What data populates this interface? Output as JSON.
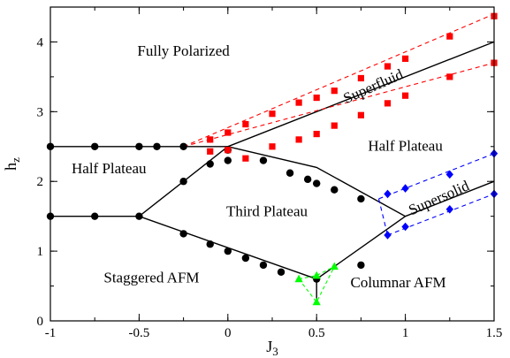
{
  "chart_data": {
    "type": "scatter",
    "xlabel": "J",
    "xlabel_sub": "3",
    "ylabel": "h",
    "ylabel_sub": "z",
    "xlim": [
      -1,
      1.5
    ],
    "ylim": [
      0,
      4.5
    ],
    "xticks": [
      -1,
      -0.5,
      0,
      0.5,
      1,
      1.5
    ],
    "xtick_labels": [
      "-1",
      "-0.5",
      "0",
      "0.5",
      "1",
      "1.5"
    ],
    "yticks": [
      0,
      1,
      2,
      3,
      4
    ],
    "ytick_labels": [
      "0",
      "1",
      "2",
      "3",
      "4"
    ],
    "grid": false,
    "colors": {
      "black": "#000000",
      "red": "#ff0000",
      "blue": "#0000ff",
      "green": "#00ff00"
    },
    "regions": [
      {
        "text": "Fully Polarized",
        "x": -0.25,
        "y": 3.8,
        "color": "#000000",
        "rotate": 0
      },
      {
        "text": "Half Plateau",
        "x": -0.67,
        "y": 2.12,
        "color": "#000000",
        "rotate": 0
      },
      {
        "text": "Half Plateau",
        "x": 1.0,
        "y": 2.44,
        "color": "#000000",
        "rotate": 0
      },
      {
        "text": "Third Plateau",
        "x": 0.22,
        "y": 1.5,
        "color": "#000000",
        "rotate": 0
      },
      {
        "text": "Staggered AFM",
        "x": -0.43,
        "y": 0.55,
        "color": "#000000",
        "rotate": 0
      },
      {
        "text": "Columnar AFM",
        "x": 0.96,
        "y": 0.48,
        "color": "#000000",
        "rotate": 0
      },
      {
        "text": "Superfluid",
        "x": 0.83,
        "y": 3.3,
        "color": "#ff0000",
        "rotate": -24
      },
      {
        "text": "Supersolid",
        "x": 1.2,
        "y": 1.7,
        "color": "#0000ff",
        "rotate": -24
      }
    ],
    "series": [
      {
        "color": "#000000",
        "marker": "circle",
        "line": "none",
        "points": [
          [
            -1,
            2.5
          ],
          [
            -0.75,
            2.5
          ],
          [
            -0.5,
            2.5
          ],
          [
            -0.4,
            2.5
          ],
          [
            -0.25,
            2.5
          ],
          [
            -1,
            1.5
          ],
          [
            -0.75,
            1.5
          ],
          [
            -0.5,
            1.5
          ],
          [
            -0.25,
            2.0
          ],
          [
            -0.1,
            2.25
          ],
          [
            0,
            2.3
          ],
          [
            0,
            2.45
          ],
          [
            0.2,
            2.3
          ],
          [
            0.35,
            2.12
          ],
          [
            0.45,
            2.03
          ],
          [
            0.5,
            1.97
          ],
          [
            0.6,
            1.88
          ],
          [
            0.75,
            1.75
          ],
          [
            -0.25,
            1.25
          ],
          [
            -0.1,
            1.1
          ],
          [
            0,
            1.0
          ],
          [
            0.1,
            0.9
          ],
          [
            0.2,
            0.8
          ],
          [
            0.3,
            0.7
          ],
          [
            0.5,
            0.6
          ],
          [
            0.75,
            0.8
          ]
        ]
      },
      {
        "color": "#ff0000",
        "marker": "square",
        "line": "none",
        "points": [
          [
            -0.1,
            2.6
          ],
          [
            0,
            2.7
          ],
          [
            0.1,
            2.82
          ],
          [
            0.25,
            2.97
          ],
          [
            0.4,
            3.13
          ],
          [
            0.5,
            3.2
          ],
          [
            0.6,
            3.3
          ],
          [
            0.75,
            3.48
          ],
          [
            0.9,
            3.65
          ],
          [
            1.0,
            3.76
          ],
          [
            1.25,
            4.08
          ],
          [
            1.5,
            4.37
          ],
          [
            -0.1,
            2.43
          ],
          [
            0,
            2.45
          ],
          [
            0.1,
            2.33
          ],
          [
            0.25,
            2.5
          ],
          [
            0.4,
            2.6
          ],
          [
            0.5,
            2.68
          ],
          [
            0.6,
            2.8
          ],
          [
            0.75,
            2.95
          ],
          [
            0.9,
            3.12
          ],
          [
            1.0,
            3.23
          ],
          [
            1.25,
            3.5
          ],
          [
            1.5,
            3.7
          ]
        ]
      },
      {
        "color": "#0000ff",
        "marker": "diamond",
        "line": "none",
        "points": [
          [
            0.9,
            1.82
          ],
          [
            1.0,
            1.9
          ],
          [
            1.25,
            2.1
          ],
          [
            1.5,
            2.4
          ],
          [
            0.9,
            1.23
          ],
          [
            1.0,
            1.35
          ],
          [
            1.25,
            1.6
          ],
          [
            1.5,
            1.82
          ]
        ]
      },
      {
        "color": "#00ff00",
        "marker": "triangle",
        "line": "none",
        "points": [
          [
            0.4,
            0.6
          ],
          [
            0.5,
            0.65
          ],
          [
            0.6,
            0.78
          ],
          [
            0.5,
            0.27
          ]
        ]
      }
    ],
    "boundaries": [
      {
        "color": "#000000",
        "dash": "none",
        "points": [
          [
            -1,
            2.5
          ],
          [
            0,
            2.5
          ],
          [
            0.5,
            2.2
          ],
          [
            1.0,
            1.5
          ],
          [
            1.5,
            2.0
          ]
        ]
      },
      {
        "color": "#000000",
        "dash": "none",
        "points": [
          [
            -1,
            1.5
          ],
          [
            -0.5,
            1.5
          ],
          [
            0,
            2.5
          ]
        ]
      },
      {
        "color": "#000000",
        "dash": "none",
        "points": [
          [
            -0.5,
            1.5
          ],
          [
            0.5,
            0.6
          ],
          [
            1.0,
            1.5
          ]
        ]
      },
      {
        "color": "#000000",
        "dash": "none",
        "points": [
          [
            0,
            2.5
          ],
          [
            1.5,
            4.0
          ]
        ]
      },
      {
        "color": "#000000",
        "dash": "none",
        "points": [
          [
            0.5,
            0.6
          ],
          [
            0.5,
            0.27
          ]
        ]
      },
      {
        "color": "#ff0000",
        "dash": "5,4",
        "points": [
          [
            -0.25,
            2.5
          ],
          [
            1.5,
            4.4
          ]
        ]
      },
      {
        "color": "#ff0000",
        "dash": "5,4",
        "points": [
          [
            -0.25,
            2.5
          ],
          [
            1.5,
            3.7
          ]
        ]
      },
      {
        "color": "#0000ff",
        "dash": "5,4",
        "points": [
          [
            0.85,
            1.75
          ],
          [
            1.5,
            2.4
          ]
        ]
      },
      {
        "color": "#0000ff",
        "dash": "5,4",
        "points": [
          [
            0.9,
            1.23
          ],
          [
            1.5,
            1.82
          ]
        ]
      },
      {
        "color": "#0000ff",
        "dash": "5,4",
        "points": [
          [
            0.85,
            1.75
          ],
          [
            0.9,
            1.23
          ]
        ]
      },
      {
        "color": "#00ff00",
        "dash": "4,3",
        "points": [
          [
            0.4,
            0.6
          ],
          [
            0.5,
            0.27
          ],
          [
            0.6,
            0.78
          ]
        ]
      },
      {
        "color": "#00ff00",
        "dash": "4,3",
        "points": [
          [
            0.4,
            0.6
          ],
          [
            0.5,
            0.65
          ],
          [
            0.6,
            0.78
          ]
        ]
      }
    ]
  }
}
